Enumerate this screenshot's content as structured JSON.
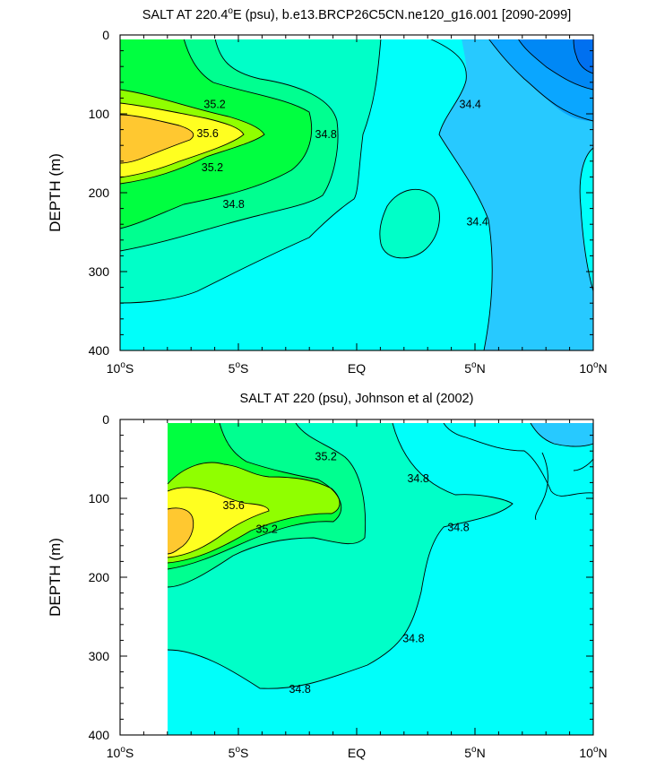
{
  "chart_data": [
    {
      "type": "contour",
      "title": "SALT AT 220.4°E (psu), b.e13.BRCP26C5CN.ne120_g16.001 [2090-2099]",
      "title_parts": [
        "SALT AT 220.4",
        "o",
        "E (psu), b.e13.BRCP26C5CN.ne120_g16.001 [2090-2099]"
      ],
      "ylabel": "DEPTH (m)",
      "xlim": [
        -10,
        10
      ],
      "ylim": [
        400,
        0
      ],
      "x_ticks": [
        {
          "v": -10,
          "num": "10",
          "deg": "o",
          "hem": "S"
        },
        {
          "v": -5,
          "num": "5",
          "deg": "o",
          "hem": "S"
        },
        {
          "v": 0,
          "num": "EQ",
          "deg": "",
          "hem": ""
        },
        {
          "v": 5,
          "num": "5",
          "deg": "o",
          "hem": "N"
        },
        {
          "v": 10,
          "num": "10",
          "deg": "o",
          "hem": "N"
        }
      ],
      "y_ticks": [
        0,
        100,
        200,
        300,
        400
      ],
      "contour_labels": [
        {
          "text": "35.2",
          "x": -6,
          "y": 88
        },
        {
          "text": "35.6",
          "x": -6.3,
          "y": 125
        },
        {
          "text": "35.2",
          "x": -6.1,
          "y": 168
        },
        {
          "text": "34.8",
          "x": -5.2,
          "y": 215
        },
        {
          "text": "34.8",
          "x": -1.3,
          "y": 126
        },
        {
          "text": "34.4",
          "x": 4.8,
          "y": 88
        },
        {
          "text": "34.4",
          "x": 5.1,
          "y": 237
        }
      ]
    },
    {
      "type": "contour",
      "title": "SALT AT 220 (psu), Johnson et al (2002)",
      "ylabel": "DEPTH (m)",
      "xlim": [
        -10,
        10
      ],
      "ylim": [
        400,
        0
      ],
      "x_ticks": [
        {
          "v": -10,
          "num": "10",
          "deg": "o",
          "hem": "S"
        },
        {
          "v": -5,
          "num": "5",
          "deg": "o",
          "hem": "S"
        },
        {
          "v": 0,
          "num": "EQ",
          "deg": "",
          "hem": ""
        },
        {
          "v": 5,
          "num": "5",
          "deg": "o",
          "hem": "N"
        },
        {
          "v": 10,
          "num": "10",
          "deg": "o",
          "hem": "N"
        }
      ],
      "y_ticks": [
        0,
        100,
        200,
        300,
        400
      ],
      "contour_labels": [
        {
          "text": "35.2",
          "x": -1.3,
          "y": 47
        },
        {
          "text": "35.6",
          "x": -5.2,
          "y": 109
        },
        {
          "text": "35.2",
          "x": -3.8,
          "y": 139
        },
        {
          "text": "34.8",
          "x": 2.6,
          "y": 75
        },
        {
          "text": "34.8",
          "x": 4.3,
          "y": 137
        },
        {
          "text": "34.8",
          "x": 2.4,
          "y": 278
        },
        {
          "text": "34.8",
          "x": -2.4,
          "y": 342
        }
      ]
    }
  ],
  "colors": {
    "c_lt_344": "#0aa6ff",
    "c_344_346": "#27c9ff",
    "c_346_348": "#00fffa",
    "c_348_350": "#00ffc8",
    "c_350_352": "#00ff90",
    "c_352_354": "#00ff40",
    "c_354_356": "#90ff00",
    "c_356_358": "#ffff20",
    "c_gt_358": "#ffc830",
    "c_deep": "#0070f0"
  }
}
